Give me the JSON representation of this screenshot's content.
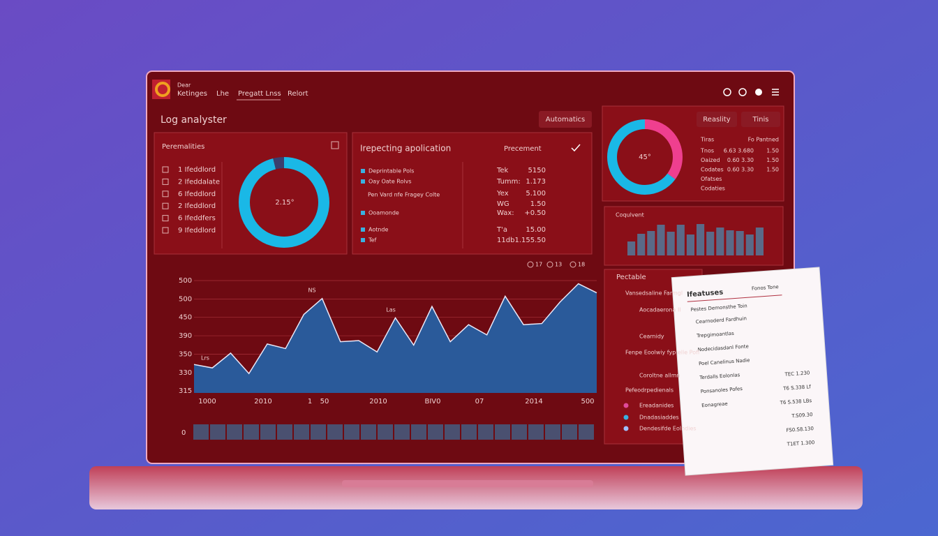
{
  "nav": {
    "brand_top": "Dear",
    "brand": "Ketinges",
    "tabs": [
      "Lhe",
      "Pregatt Lnss",
      "Relort"
    ]
  },
  "header": {
    "title": "Log analyster",
    "button": "Automatics"
  },
  "left_panel": {
    "title": "Peremalities",
    "items": [
      "1 Ifeddlord",
      "2 Ifeddalate",
      "6 Ifeddlord",
      "2 Ifeddlord",
      "6 Ifeddfers",
      "9 Ifeddlord"
    ]
  },
  "donut_left": {
    "label": "2.15°",
    "values": [
      96,
      4
    ],
    "colors": [
      "#1ab8e6",
      "#3a3f6e"
    ]
  },
  "mid_panel": {
    "title": "Irepecting apolication",
    "subtitle": "Precement",
    "items": [
      "Deprintable Pols",
      "Oay Oate Rolvs",
      "Pen Vard nfe Fragey Colte",
      "Ooamonde",
      "Aotnde",
      "Tef"
    ],
    "keys": [
      "Tek",
      "Tumm:",
      "Yex",
      "WG",
      "Wax:",
      "T'a",
      "11db"
    ],
    "numbers": [
      "5150",
      "1.173",
      "5.100",
      "1.50",
      "+0.50",
      "15.00",
      "1.155.50"
    ]
  },
  "right_top": {
    "buttons": [
      "Reaslity",
      "Tinis"
    ],
    "table_header": [
      "Tiras",
      "Fo Pantned"
    ],
    "rows": [
      [
        "Tnos",
        "6.63 3.680",
        "1.50"
      ],
      [
        "Oaized",
        "0.60 3.30",
        "1.50"
      ],
      [
        "Codates",
        "0.60 3.30",
        "1.50"
      ],
      [
        "Ofatses",
        ""
      ],
      [
        "Codaties",
        ""
      ]
    ]
  },
  "donut_right": {
    "label": "45°",
    "values": [
      35,
      65
    ],
    "colors": [
      "#ef3f8f",
      "#1ab8e6"
    ]
  },
  "bar_chart": {
    "type": "bar",
    "title": "Coqulvent",
    "values": [
      20,
      31,
      35,
      44,
      34,
      44,
      30,
      45,
      34,
      40,
      36,
      35,
      30,
      40
    ],
    "color": "#5a6a88",
    "ylim": [
      0,
      50
    ]
  },
  "area_chart": {
    "type": "area",
    "values": [
      25,
      22,
      35,
      17,
      43,
      39,
      69,
      83,
      45,
      46,
      36,
      66,
      42,
      76,
      45,
      60,
      51,
      85,
      60,
      61,
      80,
      96,
      88
    ],
    "ylim": [
      0,
      100
    ],
    "color": "#2a5a9a",
    "annotations": [
      "Lrs",
      "NS",
      "Las"
    ],
    "y_labels": [
      "500",
      "500",
      "450",
      "390",
      "350",
      "330",
      "315"
    ],
    "x_labels": [
      "1000",
      "2010",
      "1",
      "50",
      "2010",
      "BIV0",
      "07",
      "2014",
      "500"
    ],
    "legend": [
      "17",
      "13",
      "18"
    ],
    "strip_label": "0"
  },
  "pectable": {
    "title": "Pectable",
    "items": [
      "Vansedsaline Farmgl",
      "Aocadaerona Il",
      "Cearnidy",
      "Fenpe Eoolwiy fyp elle Pofl",
      "Coroltne allmn",
      "Pefeodrpedienals",
      "Ereadanides",
      "Dnadasiaddes",
      "Dendesifde Eolndies"
    ]
  },
  "document": {
    "title": "Ifeatuses",
    "corner": "Fonos Tone",
    "heading": "Pestes Demonsthe Toin",
    "lines": [
      "Cearnoderd Fardhuin",
      "Trepgimoantlas",
      "Nodecidasdanl Fonte",
      "Poel Canelinus Nadie",
      "Terdalls Eolonlas",
      "Ponsanoles Pofes",
      "Eonagreae"
    ],
    "numbers": [
      "TEC 1.230",
      "T6 S.338 Lf",
      "T6 S.538 LBs",
      "T.S09.30",
      "FS0.S8.130",
      "T1ET 1.300"
    ]
  }
}
